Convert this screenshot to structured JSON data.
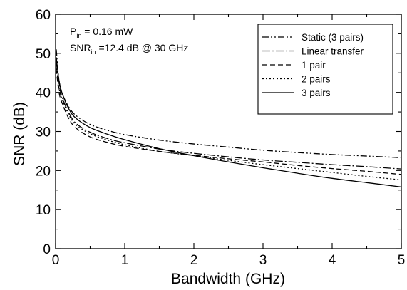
{
  "chart_data": {
    "type": "line",
    "xlabel": "Bandwidth (GHz)",
    "ylabel": "SNR (dB)",
    "xlim": [
      0,
      5
    ],
    "ylim": [
      0,
      60
    ],
    "xticks": [
      0,
      1,
      2,
      3,
      4,
      5
    ],
    "yticks": [
      0,
      10,
      20,
      30,
      40,
      50,
      60
    ],
    "grid": false,
    "legend_position": "top-right",
    "annotations": {
      "pin_main": "P",
      "pin_sub": "in",
      "pin_value": " = 0.16 mW",
      "snr_main": "SNR",
      "snr_sub": "in",
      "snr_value": " =12.4 dB @ 30 GHz"
    },
    "series": [
      {
        "name": "Static (3 pairs)",
        "dash": "dashdotdot",
        "x": [
          0.01,
          0.05,
          0.1,
          0.2,
          0.3,
          0.5,
          0.75,
          1.0,
          1.5,
          2.0,
          2.5,
          3.0,
          3.5,
          4.0,
          4.5,
          5.0
        ],
        "y": [
          51,
          43,
          39.5,
          36,
          34,
          31.8,
          30.3,
          29.2,
          27.8,
          26.8,
          26,
          25.2,
          24.6,
          24.1,
          23.7,
          23.3
        ]
      },
      {
        "name": "Linear transfer",
        "dash": "dashdot",
        "x": [
          0.01,
          0.05,
          0.1,
          0.2,
          0.3,
          0.5,
          0.75,
          1.0,
          1.5,
          2.0,
          2.5,
          3.0,
          3.5,
          4.0,
          4.5,
          5.0
        ],
        "y": [
          48,
          42,
          38.5,
          34.5,
          32,
          29.8,
          28.2,
          27.1,
          25.5,
          24.4,
          23.5,
          22.7,
          22.1,
          21.5,
          21,
          20.4
        ]
      },
      {
        "name": "1 pair",
        "dash": "dash",
        "x": [
          0.01,
          0.05,
          0.1,
          0.2,
          0.3,
          0.5,
          0.75,
          1.0,
          1.5,
          2.0,
          2.5,
          3.0,
          3.5,
          4.0,
          4.5,
          5.0
        ],
        "y": [
          46,
          40,
          37,
          33,
          30.8,
          28.6,
          27.2,
          26.2,
          24.9,
          23.9,
          23,
          22.2,
          21.3,
          20.5,
          19.8,
          19
        ]
      },
      {
        "name": "2 pairs",
        "dash": "dot",
        "x": [
          0.01,
          0.05,
          0.1,
          0.2,
          0.3,
          0.5,
          0.75,
          1.0,
          1.5,
          2.0,
          2.5,
          3.0,
          3.5,
          4.0,
          4.5,
          5.0
        ],
        "y": [
          47,
          41,
          38,
          34,
          31.6,
          29.4,
          27.8,
          26.6,
          24.9,
          23.8,
          22.6,
          21.5,
          20.5,
          19.5,
          18.5,
          17.6
        ]
      },
      {
        "name": "3 pairs",
        "dash": "solid",
        "x": [
          0.01,
          0.05,
          0.1,
          0.2,
          0.3,
          0.5,
          0.75,
          1.0,
          1.5,
          2.0,
          2.5,
          3.0,
          3.5,
          4.0,
          4.5,
          5.0
        ],
        "y": [
          49,
          43,
          39.5,
          35.5,
          33.3,
          31,
          29.3,
          27.9,
          25.6,
          23.8,
          22.2,
          20.7,
          19.3,
          18,
          16.9,
          15.8
        ]
      }
    ]
  }
}
